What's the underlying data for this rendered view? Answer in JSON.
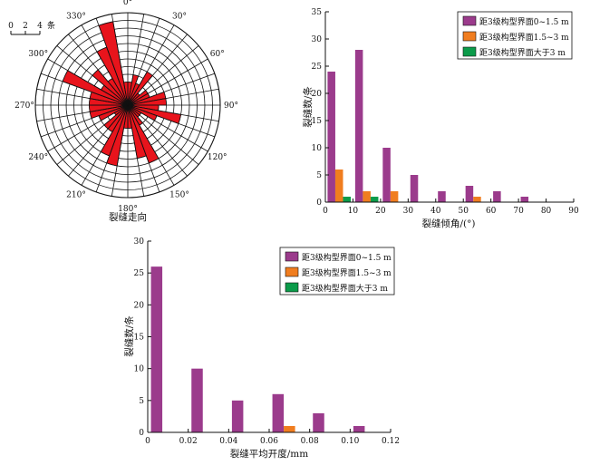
{
  "chart_data": [
    {
      "type": "rose",
      "xlabel": "裂缝走向",
      "scale_ticks": [
        "0",
        "2",
        "4"
      ],
      "scale_unit": "条",
      "angle_labels": [
        "0°",
        "30°",
        "60°",
        "90°",
        "120°",
        "150°",
        "180°",
        "210°",
        "240°",
        "270°",
        "300°",
        "330°"
      ],
      "bin_width_deg": 10,
      "max_count": 12,
      "bins": [
        {
          "from": 0,
          "count": 3
        },
        {
          "from": 10,
          "count": 4
        },
        {
          "from": 20,
          "count": 3
        },
        {
          "from": 30,
          "count": 5
        },
        {
          "from": 40,
          "count": 2
        },
        {
          "from": 50,
          "count": 3
        },
        {
          "from": 60,
          "count": 3
        },
        {
          "from": 70,
          "count": 5
        },
        {
          "from": 80,
          "count": 5
        },
        {
          "from": 90,
          "count": 4
        },
        {
          "from": 100,
          "count": 7
        },
        {
          "from": 110,
          "count": 4
        },
        {
          "from": 120,
          "count": 2
        },
        {
          "from": 130,
          "count": 2
        },
        {
          "from": 140,
          "count": 3
        },
        {
          "from": 150,
          "count": 8
        },
        {
          "from": 160,
          "count": 7
        },
        {
          "from": 170,
          "count": 3
        },
        {
          "from": 180,
          "count": 3
        },
        {
          "from": 190,
          "count": 8
        },
        {
          "from": 200,
          "count": 7
        },
        {
          "from": 210,
          "count": 4
        },
        {
          "from": 220,
          "count": 4
        },
        {
          "from": 230,
          "count": 2
        },
        {
          "from": 240,
          "count": 4
        },
        {
          "from": 250,
          "count": 5
        },
        {
          "from": 260,
          "count": 5
        },
        {
          "from": 270,
          "count": 5
        },
        {
          "from": 280,
          "count": 5
        },
        {
          "from": 290,
          "count": 9
        },
        {
          "from": 300,
          "count": 4
        },
        {
          "from": 310,
          "count": 6
        },
        {
          "from": 320,
          "count": 4
        },
        {
          "from": 330,
          "count": 8
        },
        {
          "from": 340,
          "count": 11
        },
        {
          "from": 350,
          "count": 3
        }
      ],
      "colors": {
        "fill": "#e8141c",
        "line": "#111111"
      }
    },
    {
      "type": "bar",
      "xlabel": "裂缝倾角/(°)",
      "ylabel": "裂缝数/条",
      "xlim": [
        0,
        90
      ],
      "ylim": [
        0,
        35
      ],
      "xticks": [
        0,
        10,
        20,
        30,
        40,
        50,
        60,
        70,
        80,
        90
      ],
      "yticks": [
        0,
        5,
        10,
        15,
        20,
        25,
        30,
        35
      ],
      "x": [
        5,
        15,
        25,
        35,
        45,
        55,
        65,
        75,
        85
      ],
      "series": [
        {
          "name": "距3级构型界面0~1.5 m",
          "color": "#9b3b8c",
          "values": [
            24,
            28,
            10,
            5,
            2,
            3,
            2,
            1,
            0
          ]
        },
        {
          "name": "距3级构型界面1.5~3 m",
          "color": "#f07d1f",
          "values": [
            6,
            2,
            2,
            0,
            0,
            1,
            0,
            0,
            0
          ]
        },
        {
          "name": "距3级构型界面大于3 m",
          "color": "#0b9b4a",
          "values": [
            1,
            1,
            0,
            0,
            0,
            0,
            0,
            0,
            0
          ]
        }
      ],
      "legend": "top-right"
    },
    {
      "type": "bar",
      "xlabel": "裂缝平均开度/mm",
      "ylabel": "裂缝数/条",
      "xlim": [
        0,
        0.12
      ],
      "ylim": [
        0,
        30
      ],
      "xticks": [
        "0",
        "0.02",
        "0.04",
        "0.06",
        "0.08",
        "0.10",
        "0.12"
      ],
      "yticks": [
        0,
        5,
        10,
        15,
        20,
        25,
        30
      ],
      "x": [
        0.01,
        0.03,
        0.05,
        0.07,
        0.09,
        0.11
      ],
      "series": [
        {
          "name": "距3级构型界面0~1.5 m",
          "color": "#9b3b8c",
          "values": [
            26,
            10,
            5,
            6,
            3,
            1
          ]
        },
        {
          "name": "距3级构型界面1.5~3 m",
          "color": "#f07d1f",
          "values": [
            0,
            0,
            0,
            1,
            0,
            0
          ]
        },
        {
          "name": "距3级构型界面大于3 m",
          "color": "#0b9b4a",
          "values": [
            0,
            0,
            0,
            0,
            0,
            0
          ]
        }
      ],
      "legend": "top-right"
    }
  ]
}
